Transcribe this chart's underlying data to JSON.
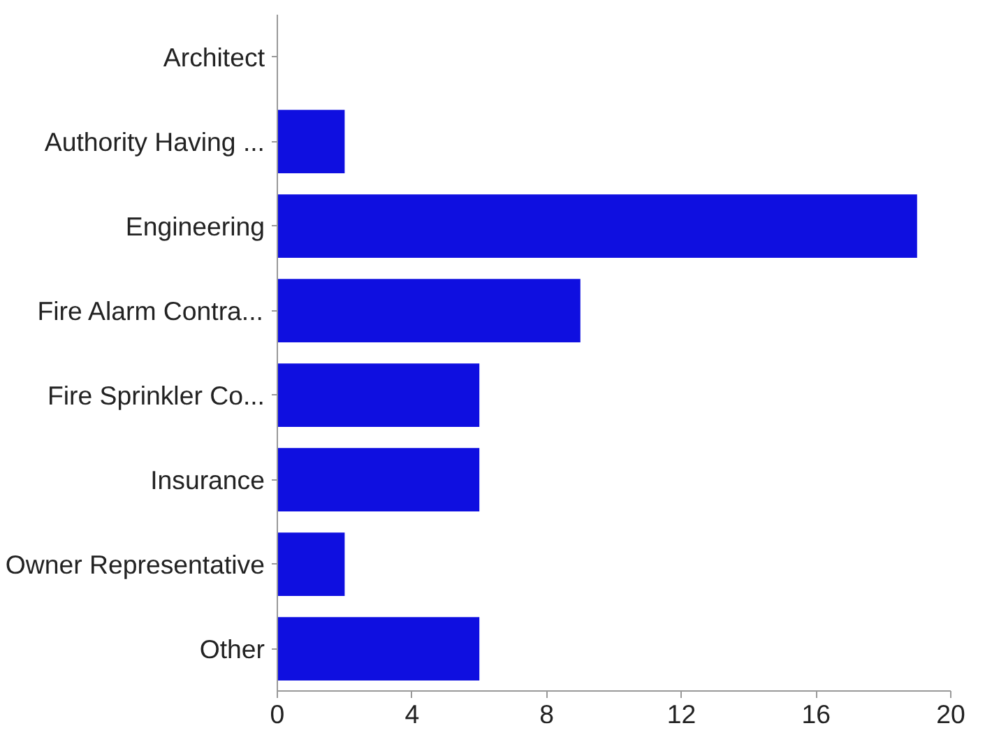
{
  "chart_data": {
    "type": "bar",
    "orientation": "horizontal",
    "categories": [
      "Architect",
      "Authority Having ...",
      "Engineering",
      "Fire Alarm Contra...",
      "Fire Sprinkler Co...",
      "Insurance",
      "Owner Representative",
      "Other"
    ],
    "values": [
      0,
      2,
      19,
      9,
      6,
      6,
      2,
      6
    ],
    "color": "#0f0fe0",
    "xlim": [
      0,
      20
    ],
    "xticks": [
      0,
      4,
      8,
      12,
      16,
      20
    ],
    "grid": false
  }
}
